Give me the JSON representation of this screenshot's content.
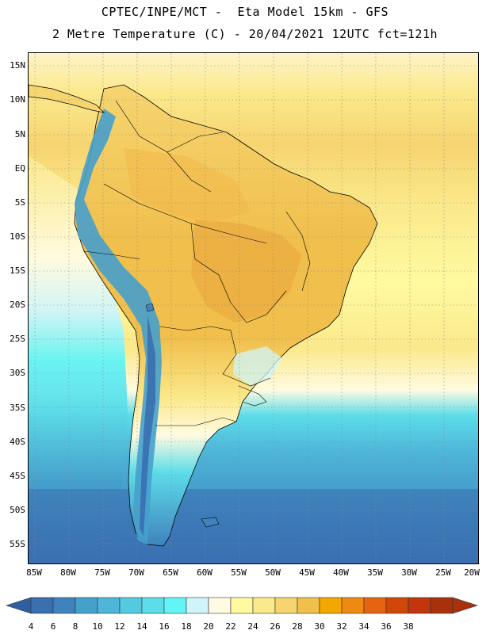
{
  "header": {
    "line1": "CPTEC/INPE/MCT -  Eta Model 15km - GFS",
    "line2": "2 Metre Temperature (C) - 20/04/2021 12UTC fct=121h"
  },
  "map": {
    "region": "South America",
    "field": "2 Metre Temperature",
    "units": "C",
    "lat_labels": [
      "15N",
      "10N",
      "5N",
      "EQ",
      "5S",
      "10S",
      "15S",
      "20S",
      "25S",
      "30S",
      "35S",
      "40S",
      "45S",
      "50S",
      "55S"
    ],
    "lon_labels": [
      "85W",
      "80W",
      "75W",
      "70W",
      "65W",
      "60W",
      "55W",
      "50W",
      "45W",
      "40W",
      "35W",
      "30W",
      "25W",
      "20W"
    ]
  },
  "colorbar": {
    "labels": [
      "4",
      "6",
      "8",
      "10",
      "12",
      "14",
      "16",
      "18",
      "20",
      "22",
      "24",
      "26",
      "28",
      "30",
      "32",
      "34",
      "36",
      "38"
    ],
    "colors": [
      "#3a6fb0",
      "#3f82bd",
      "#46a0cc",
      "#4fb6d9",
      "#55c9e0",
      "#5ddde9",
      "#63f4f6",
      "#cff5fb",
      "#fffbe2",
      "#fffaa0",
      "#fbe98b",
      "#f6d470",
      "#f0bf4c",
      "#f2a800",
      "#ec8a12",
      "#e56410",
      "#d04708",
      "#c1360c",
      "#a8300a"
    ],
    "low_color": "#2f5fa3",
    "high_color": "#a8300a"
  }
}
